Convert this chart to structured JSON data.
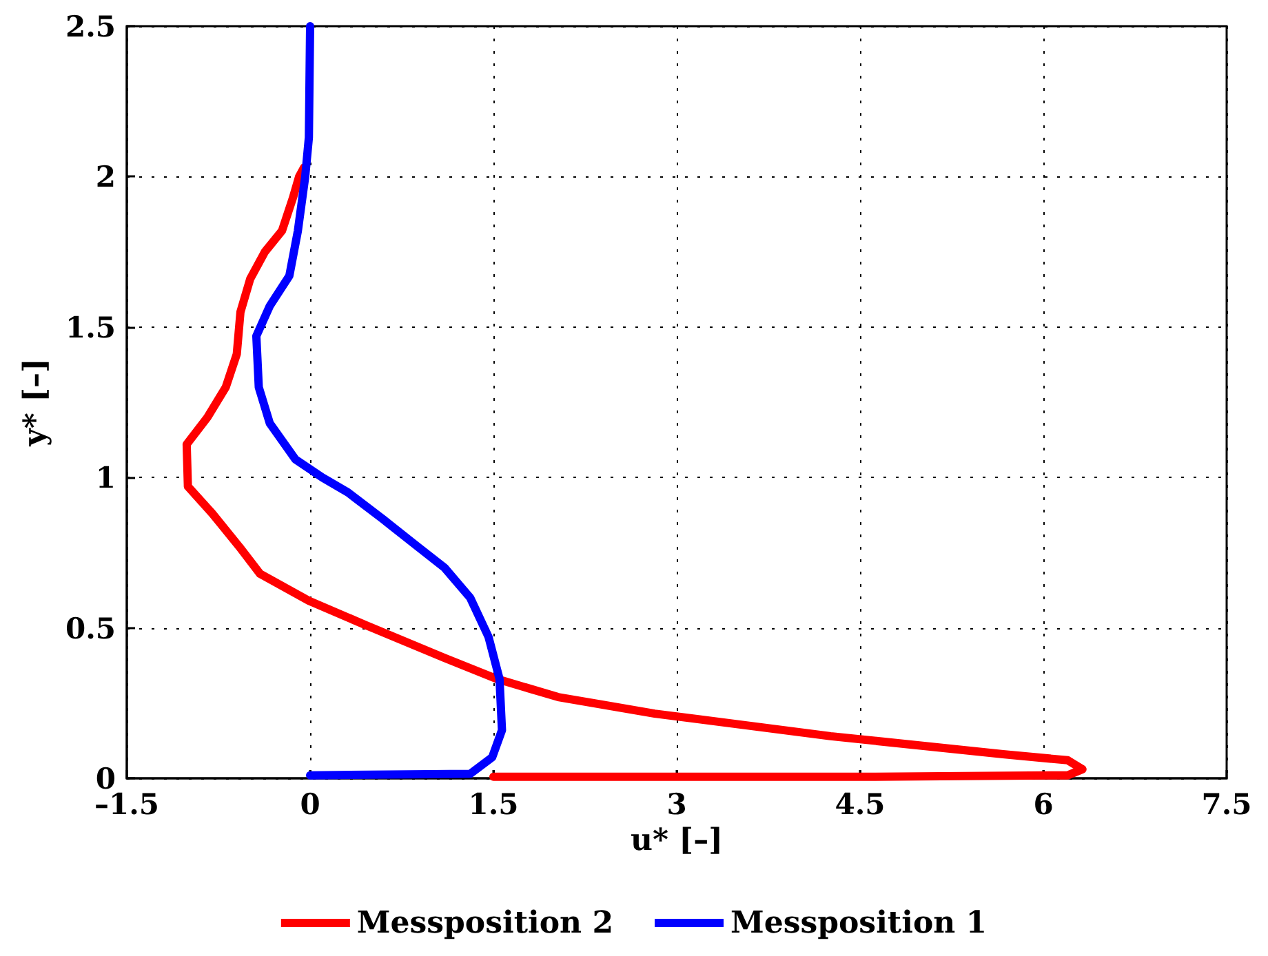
{
  "chart_data": {
    "type": "line",
    "xlabel": "u* [–]",
    "ylabel": "y* [–]",
    "xlim": [
      -1.5,
      7.5
    ],
    "ylim": [
      0,
      2.5
    ],
    "xticks": [
      {
        "value": -1.5,
        "label": "–1.5"
      },
      0,
      1.5,
      3,
      4.5,
      6,
      7.5
    ],
    "yticks": [
      0,
      0.5,
      1,
      1.5,
      2,
      2.5
    ],
    "grid": true,
    "legend": "bottom",
    "marker": "none",
    "line_style": "solid",
    "series": [
      {
        "name": "Messposition 2",
        "color": "#ff0000",
        "x": [
          -0.05,
          -0.09,
          -0.14,
          -0.23,
          -0.37,
          -0.49,
          -0.57,
          -0.6,
          -0.69,
          -0.84,
          -1.01,
          -1.0,
          -0.8,
          -0.58,
          -0.41,
          -0.01,
          0.45,
          1.1,
          1.53,
          2.03,
          2.82,
          4.26,
          5.67,
          6.2,
          6.32,
          6.2,
          4.5,
          3,
          1.5
        ],
        "values": [
          2.03,
          2.0,
          1.93,
          1.82,
          1.75,
          1.66,
          1.55,
          1.41,
          1.3,
          1.2,
          1.11,
          0.97,
          0.88,
          0.77,
          0.68,
          0.59,
          0.51,
          0.4,
          0.33,
          0.27,
          0.215,
          0.14,
          0.08,
          0.06,
          0.03,
          0.01,
          0.005,
          0.005,
          0.005
        ]
      },
      {
        "name": "Messposition 1",
        "color": "#0000ff",
        "x": [
          0,
          -0.01,
          -0.04,
          -0.1,
          -0.17,
          -0.33,
          -0.44,
          -0.42,
          -0.33,
          -0.12,
          0.1,
          0.31,
          0.6,
          0.88,
          1.1,
          1.31,
          1.46,
          1.55,
          1.57,
          1.49,
          1.31,
          0
        ],
        "values": [
          2.5,
          2.13,
          2.0,
          1.82,
          1.67,
          1.57,
          1.47,
          1.3,
          1.18,
          1.06,
          1.0,
          0.95,
          0.86,
          0.77,
          0.7,
          0.6,
          0.47,
          0.33,
          0.16,
          0.07,
          0.015,
          0.01
        ]
      }
    ]
  }
}
